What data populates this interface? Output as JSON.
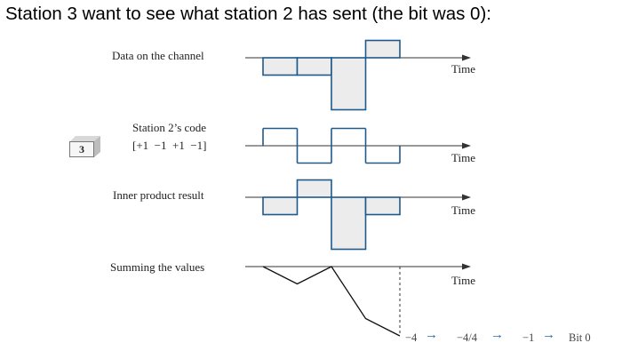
{
  "heading": "Station 3 want to see what station 2 has sent (the bit was 0):",
  "station": {
    "number": "3"
  },
  "rows": {
    "data": {
      "label": "Data on the channel",
      "time_label": "Time"
    },
    "code": {
      "label": "Station 2’s code",
      "sub_label": "[+1  −1  +1  −1]",
      "time_label": "Time"
    },
    "inner": {
      "label": "Inner product result",
      "time_label": "Time"
    },
    "sum": {
      "label": "Summing the values",
      "time_label": "Time"
    }
  },
  "chart_data": {
    "type": "step",
    "channel_levels": [
      -1,
      -1,
      -3,
      1
    ],
    "code": [
      1,
      -1,
      1,
      -1
    ],
    "inner_product": [
      -1,
      1,
      -3,
      -1
    ],
    "running_sum": [
      0,
      -1,
      0,
      -3,
      -4
    ]
  },
  "result": {
    "sum_value": "−4",
    "arrow1": "→",
    "divided": "−4/4",
    "arrow2": "→",
    "normalized": "−1",
    "arrow3": "→",
    "bit": "Bit 0"
  },
  "colors": {
    "fill": "#ececec",
    "line": "#1e5a8c",
    "axis": "#333333",
    "arrow": "#2a6aa8"
  }
}
